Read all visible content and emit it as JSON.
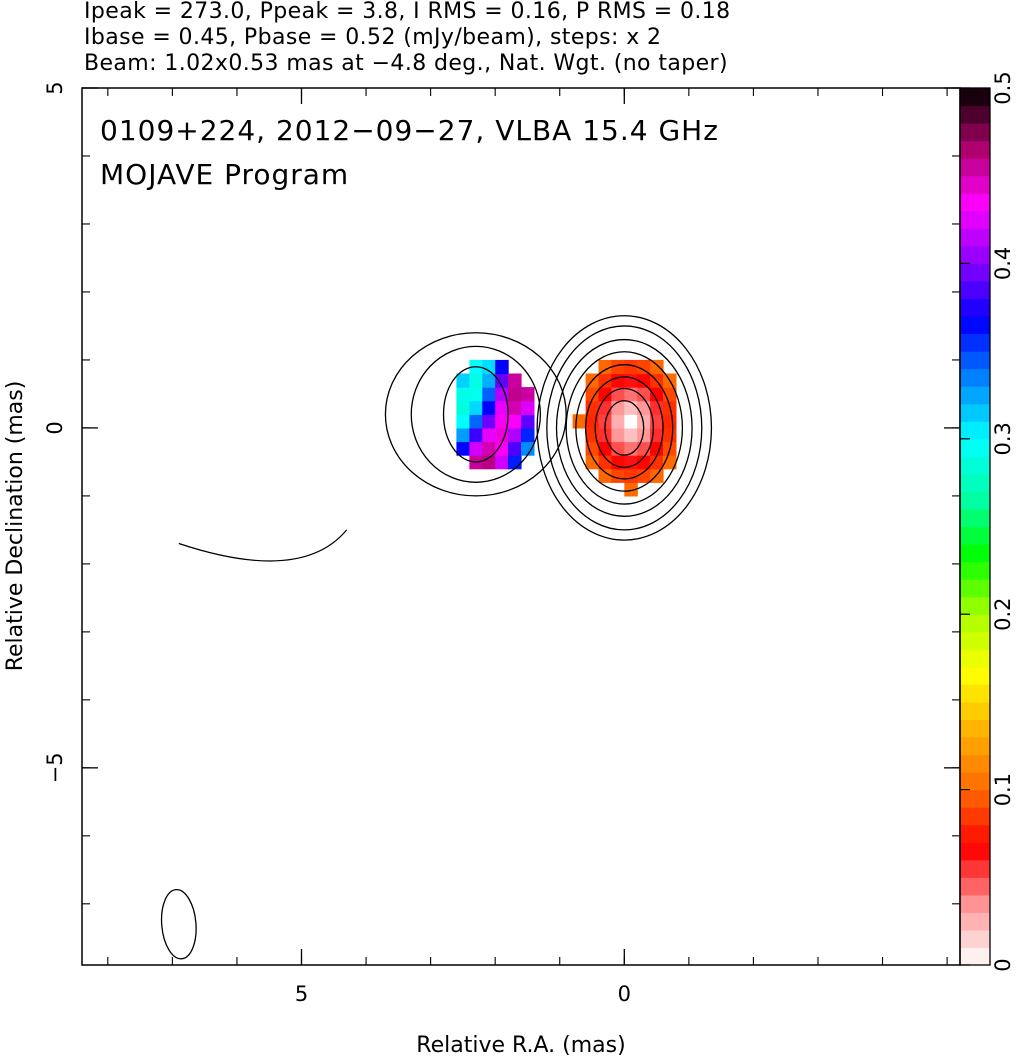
{
  "header": {
    "line1": "Ipeak = 273.0, Ppeak = 3.8, I RMS = 0.16, P RMS = 0.18",
    "line2": "Ibase = 0.45, Pbase = 0.52 (mJy/beam), steps: x 2",
    "line3": "Beam: 1.02x0.53 mas at −4.8 deg., Nat. Wgt. (no taper)"
  },
  "chart_data": {
    "type": "heatmap",
    "title": "0109+224, 2012−09−27, VLBA 15.4 GHz",
    "subtitle": "MOJAVE Program",
    "xlabel": "Relative R.A. (mas)",
    "ylabel": "Relative Declination (mas)",
    "xlim": [
      8.4,
      -5.2
    ],
    "ylim": [
      -7.9,
      5.0
    ],
    "x_ticks": [
      {
        "value": 5,
        "label": "5"
      },
      {
        "value": 0,
        "label": "0"
      }
    ],
    "y_ticks": [
      {
        "value": 5,
        "label": "5"
      },
      {
        "value": 0,
        "label": "0"
      },
      {
        "value": -5,
        "label": "−5"
      }
    ],
    "colorbar": {
      "range": [
        0,
        0.5
      ],
      "ticks": [
        {
          "value": 0,
          "label": "0"
        },
        {
          "value": 0.1,
          "label": "0.1"
        },
        {
          "value": 0.2,
          "label": "0.2"
        },
        {
          "value": 0.3,
          "label": "0.3"
        },
        {
          "value": 0.4,
          "label": "0.4"
        },
        {
          "value": 0.5,
          "label": "0.5"
        }
      ],
      "colors": [
        "#ffffff",
        "#ff9a9a",
        "#ff0000",
        "#ff6a00",
        "#ffb000",
        "#ffff00",
        "#aaff00",
        "#00ff00",
        "#00ffaa",
        "#00ffff",
        "#0088ff",
        "#0000ff",
        "#8800ff",
        "#ff00ff",
        "#aa0066",
        "#000000"
      ]
    },
    "core_component": {
      "center": [
        0,
        0
      ],
      "contour_radii_mas": [
        [
          0.3,
          0.4
        ],
        [
          0.45,
          0.58
        ],
        [
          0.6,
          0.75
        ],
        [
          0.75,
          0.93
        ],
        [
          0.9,
          1.12
        ],
        [
          1.05,
          1.3
        ],
        [
          1.2,
          1.5
        ],
        [
          1.35,
          1.65
        ]
      ],
      "fractional_polarization_region": {
        "x_range": [
          0.8,
          -0.8
        ],
        "y_range": [
          -1.0,
          1.0
        ],
        "value_range": [
          0.0,
          0.1
        ]
      }
    },
    "jet_component": {
      "center": [
        2.3,
        0.3
      ],
      "fractional_polarization_region": {
        "x_range": [
          2.8,
          1.5
        ],
        "y_range": [
          -0.8,
          0.9
        ],
        "value_range": [
          0.25,
          0.5
        ]
      }
    },
    "beam": {
      "center": [
        6.9,
        -7.3
      ],
      "major_mas": 1.02,
      "minor_mas": 0.53,
      "pa_deg": -4.8
    }
  }
}
